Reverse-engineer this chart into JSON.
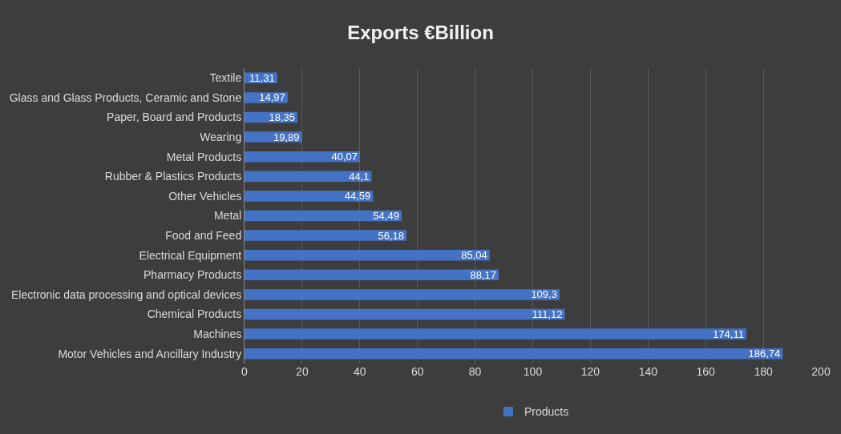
{
  "chart_data": {
    "type": "bar",
    "orientation": "horizontal",
    "title": "Exports €Billion",
    "categories": [
      "Textile",
      "Glass and Glass Products, Ceramic and Stone",
      "Paper, Board and Products",
      "Wearing",
      "Metal Products",
      "Rubber & Plastics Products",
      "Other Vehicles",
      "Metal",
      "Food and Feed",
      "Electrical Equipment",
      "Pharmacy Products",
      "Electronic data processing and optical devices",
      "Chemical Products",
      "Machines",
      "Motor Vehicles and Ancillary Industry"
    ],
    "series": [
      {
        "name": "Products",
        "color": "#4472c4",
        "values": [
          11.31,
          14.97,
          18.35,
          19.89,
          40.07,
          44.1,
          44.59,
          54.49,
          56.18,
          85.04,
          88.17,
          109.3,
          111.12,
          174.11,
          186.74
        ],
        "value_labels": [
          "11,31",
          "14,97",
          "18,35",
          "19,89",
          "40,07",
          "44,1",
          "44,59",
          "54,49",
          "56,18",
          "85,04",
          "88,17",
          "109,3",
          "111,12",
          "174,11",
          "186,74"
        ]
      }
    ],
    "xlim": [
      0,
      200
    ],
    "xticks": [
      0,
      20,
      40,
      60,
      80,
      100,
      120,
      140,
      160,
      180,
      200
    ],
    "grid": "x",
    "legend": "bottom"
  }
}
